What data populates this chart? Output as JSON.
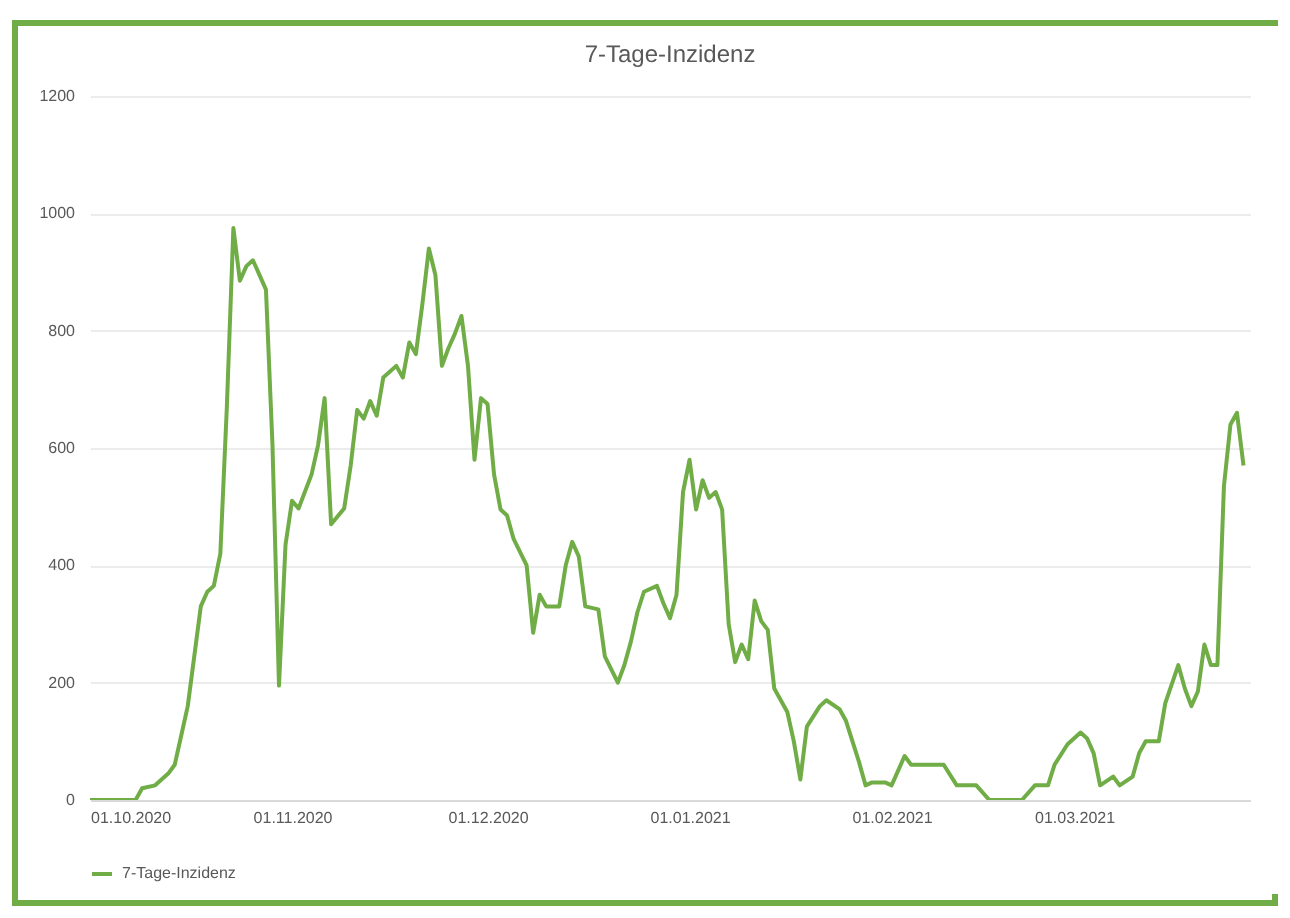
{
  "chart_data": {
    "type": "line",
    "title": "7-Tage-Inzidenz",
    "x": [
      "2020-10-01",
      "2020-10-08",
      "2020-10-09",
      "2020-10-11",
      "2020-10-13",
      "2020-10-14",
      "2020-10-15",
      "2020-10-16",
      "2020-10-18",
      "2020-10-19",
      "2020-10-20",
      "2020-10-21",
      "2020-10-22",
      "2020-10-23",
      "2020-10-24",
      "2020-10-25",
      "2020-10-26",
      "2020-10-27",
      "2020-10-28",
      "2020-10-29",
      "2020-10-30",
      "2020-10-31",
      "2020-11-01",
      "2020-11-02",
      "2020-11-04",
      "2020-11-05",
      "2020-11-06",
      "2020-11-07",
      "2020-11-09",
      "2020-11-10",
      "2020-11-11",
      "2020-11-12",
      "2020-11-13",
      "2020-11-14",
      "2020-11-15",
      "2020-11-17",
      "2020-11-18",
      "2020-11-19",
      "2020-11-20",
      "2020-11-21",
      "2020-11-22",
      "2020-11-23",
      "2020-11-24",
      "2020-11-25",
      "2020-11-26",
      "2020-11-27",
      "2020-11-28",
      "2020-11-29",
      "2020-11-30",
      "2020-12-01",
      "2020-12-02",
      "2020-12-03",
      "2020-12-04",
      "2020-12-05",
      "2020-12-07",
      "2020-12-08",
      "2020-12-09",
      "2020-12-10",
      "2020-12-12",
      "2020-12-13",
      "2020-12-14",
      "2020-12-15",
      "2020-12-16",
      "2020-12-18",
      "2020-12-19",
      "2020-12-21",
      "2020-12-22",
      "2020-12-23",
      "2020-12-24",
      "2020-12-25",
      "2020-12-27",
      "2020-12-28",
      "2020-12-29",
      "2020-12-30",
      "2020-12-31",
      "2021-01-01",
      "2021-01-02",
      "2021-01-03",
      "2021-01-04",
      "2021-01-05",
      "2021-01-06",
      "2021-01-07",
      "2021-01-08",
      "2021-01-09",
      "2021-01-10",
      "2021-01-11",
      "2021-01-12",
      "2021-01-13",
      "2021-01-14",
      "2021-01-16",
      "2021-01-17",
      "2021-01-18",
      "2021-01-19",
      "2021-01-21",
      "2021-01-22",
      "2021-01-24",
      "2021-01-25",
      "2021-01-27",
      "2021-01-28",
      "2021-01-29",
      "2021-01-31",
      "2021-02-01",
      "2021-02-03",
      "2021-02-04",
      "2021-02-06",
      "2021-02-09",
      "2021-02-11",
      "2021-02-14",
      "2021-02-16",
      "2021-02-21",
      "2021-02-23",
      "2021-02-25",
      "2021-02-26",
      "2021-02-28",
      "2021-03-02",
      "2021-03-03",
      "2021-03-04",
      "2021-03-05",
      "2021-03-07",
      "2021-03-08",
      "2021-03-10",
      "2021-03-11",
      "2021-03-12",
      "2021-03-14",
      "2021-03-15",
      "2021-03-17",
      "2021-03-18",
      "2021-03-19",
      "2021-03-20",
      "2021-03-21",
      "2021-03-22",
      "2021-03-23",
      "2021-03-24",
      "2021-03-25",
      "2021-03-26",
      "2021-03-27"
    ],
    "series": [
      {
        "name": "7-Tage-Inzidenz",
        "color": "#70ad47",
        "values": [
          0,
          0,
          20,
          25,
          45,
          60,
          110,
          160,
          330,
          355,
          365,
          420,
          670,
          975,
          885,
          910,
          920,
          895,
          870,
          605,
          195,
          435,
          510,
          497,
          555,
          605,
          685,
          470,
          497,
          570,
          665,
          650,
          680,
          655,
          720,
          740,
          720,
          780,
          760,
          845,
          940,
          895,
          740,
          770,
          795,
          825,
          740,
          580,
          685,
          675,
          555,
          495,
          485,
          445,
          400,
          285,
          350,
          330,
          330,
          400,
          440,
          415,
          330,
          325,
          245,
          200,
          230,
          270,
          320,
          355,
          365,
          335,
          310,
          350,
          525,
          580,
          495,
          545,
          515,
          525,
          495,
          300,
          235,
          265,
          240,
          340,
          305,
          290,
          190,
          150,
          100,
          35,
          125,
          160,
          170,
          155,
          135,
          65,
          25,
          30,
          30,
          25,
          75,
          60,
          60,
          60,
          25,
          25,
          0,
          0,
          25,
          25,
          60,
          95,
          115,
          105,
          80,
          25,
          40,
          25,
          40,
          80,
          100,
          100,
          165,
          230,
          190,
          160,
          185,
          265,
          230,
          230,
          535,
          640,
          660,
          570
        ]
      }
    ],
    "xlim": [
      "2020-10-01",
      "2021-03-28"
    ],
    "xticks": [
      {
        "value": "2020-10-01",
        "label": "01.10.2020"
      },
      {
        "value": "2020-11-01",
        "label": "01.11.2020"
      },
      {
        "value": "2020-12-01",
        "label": "01.12.2020"
      },
      {
        "value": "2021-01-01",
        "label": "01.01.2021"
      },
      {
        "value": "2021-02-01",
        "label": "01.02.2021"
      },
      {
        "value": "2021-03-01",
        "label": "01.03.2021"
      }
    ],
    "ylim": [
      0,
      1200
    ],
    "yticks": [
      0,
      200,
      400,
      600,
      800,
      1000,
      1200
    ],
    "grid": "y",
    "legend": "bottom",
    "line_style": "solid"
  }
}
